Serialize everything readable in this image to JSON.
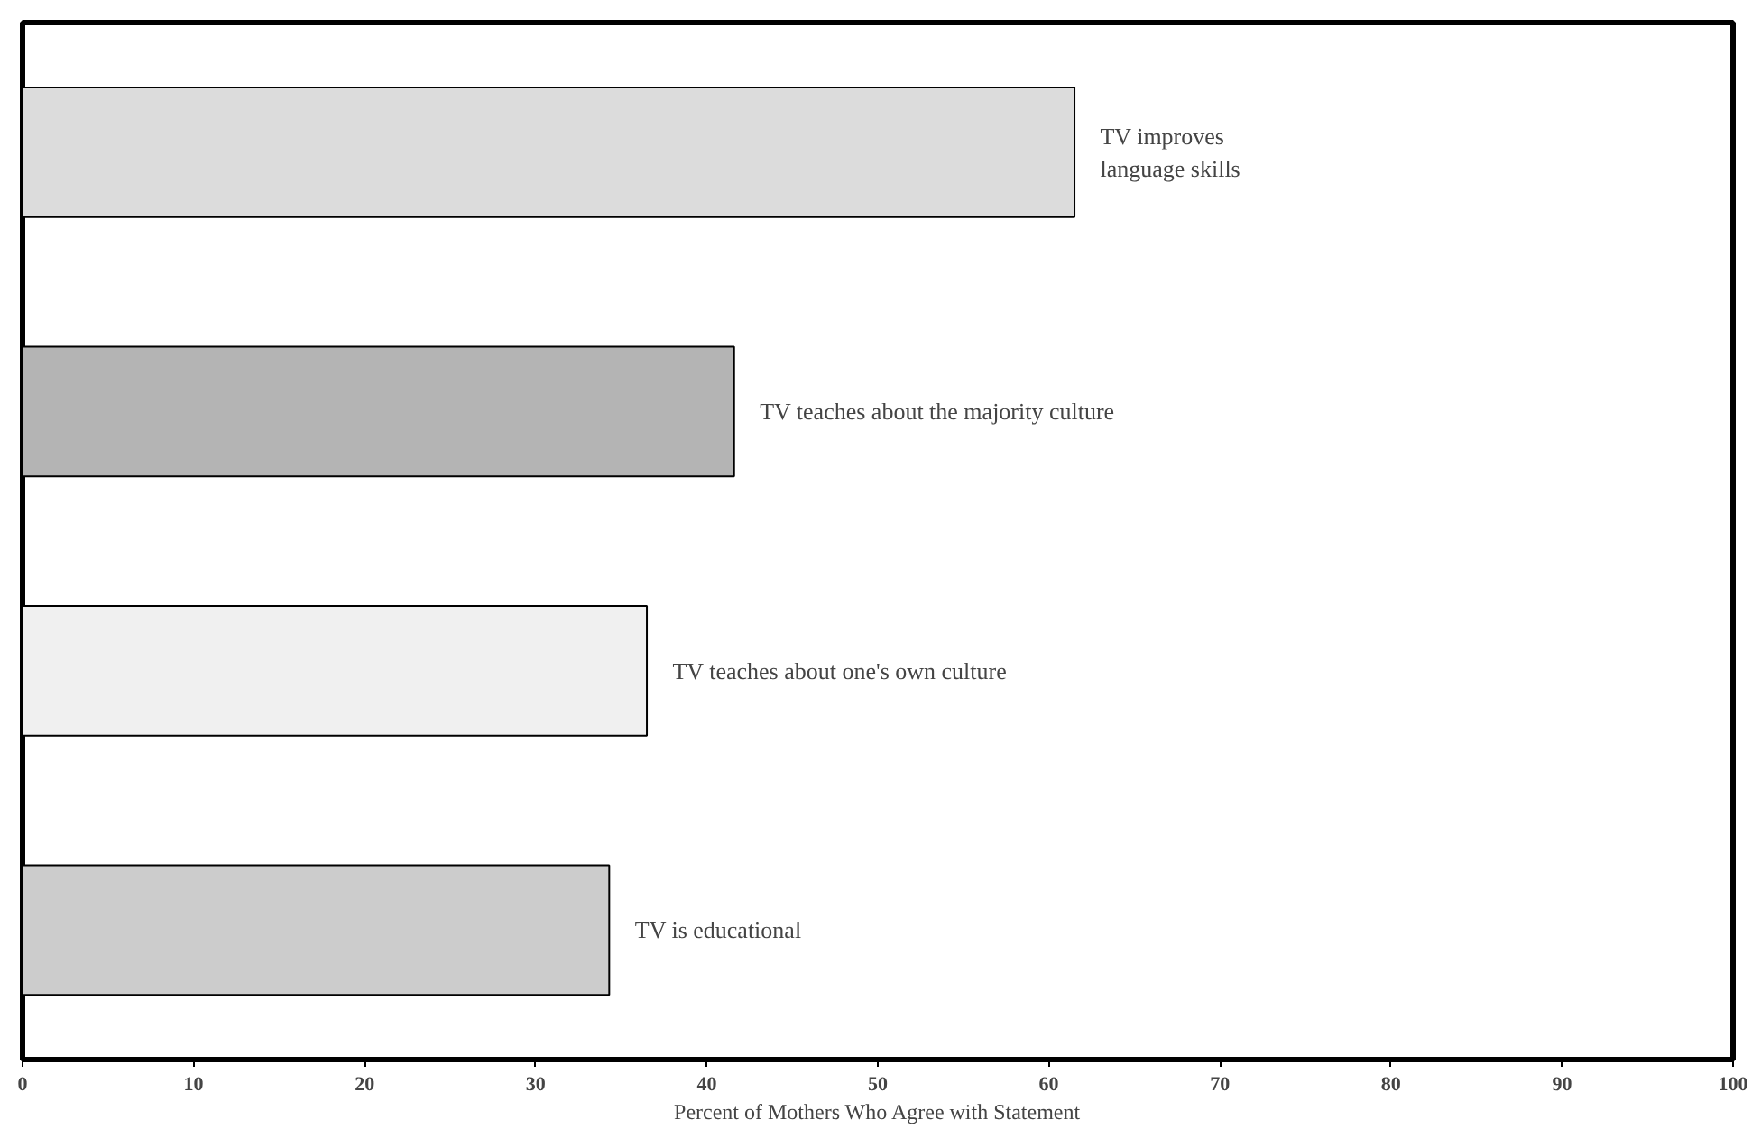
{
  "chart_data": {
    "type": "bar",
    "orientation": "horizontal",
    "xlabel": "Percent of Mothers Who Agree with Statement",
    "categories": [
      "TV improves\nlanguage skills",
      "TV teaches about the majority culture",
      "TV teaches about one's own culture",
      "TV is educational"
    ],
    "values": [
      61.5,
      41.6,
      36.5,
      34.3
    ],
    "colors": [
      "#dcdcdc",
      "#b4b4b4",
      "#f0f0f0",
      "#cccccc"
    ],
    "xlim": [
      0,
      100
    ],
    "xticks": [
      0,
      10,
      20,
      30,
      40,
      50,
      60,
      70,
      80,
      90,
      100
    ],
    "tick_labels": "x",
    "grid": false
  }
}
